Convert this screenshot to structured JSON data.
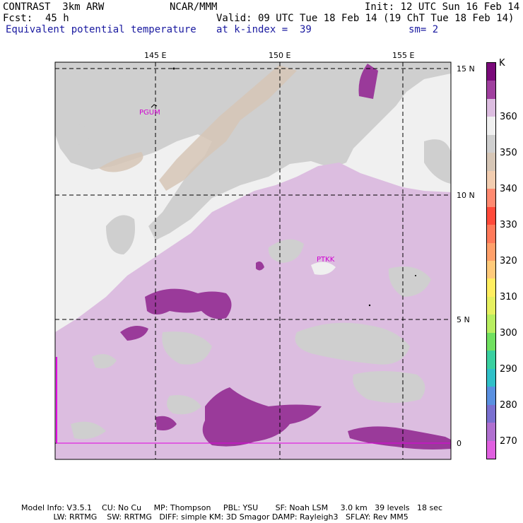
{
  "header": {
    "model": "CONTRAST  3km ARW",
    "producer": "NCAR/MMM",
    "init": "Init: 12 UTC Sun 16 Feb 14",
    "fcst_label": "Fcst:",
    "fcst_value": "45 h",
    "valid": "Valid: 09 UTC Tue 18 Feb 14 (19 ChT Tue 18 Feb 14)",
    "field": "Equivalent potential temperature",
    "level": "at k-index =  39",
    "smoothing": "sm= 2"
  },
  "map": {
    "lon_labels": [
      "145 E",
      "150 E",
      "155 E"
    ],
    "lat_labels": [
      "15 N",
      "10 N",
      "5 N",
      "0"
    ],
    "stations": [
      "PGUM",
      "PTKK"
    ],
    "fill_colors": {
      "background": "#f0f0f0",
      "grey": "#cfcfcf",
      "tan": "#d6c6b6",
      "light_purple": "#dcbde0",
      "dark_purple": "#9a3a9a"
    }
  },
  "colorbar": {
    "unit": "K",
    "labels": [
      "360",
      "350",
      "340",
      "330",
      "320",
      "310",
      "300",
      "290",
      "280",
      "270"
    ],
    "colors": [
      "#7a0a7a",
      "#a0409f",
      "#dcbde0",
      "#f0f0f0",
      "#cfcfcf",
      "#d6c6b6",
      "#f2cdb0",
      "#ff8a70",
      "#ff4a3a",
      "#ff7a5a",
      "#ffa06a",
      "#ffca7a",
      "#ffee60",
      "#e6f060",
      "#b8ee60",
      "#70e060",
      "#3ad0a0",
      "#30c0c8",
      "#5a90e0",
      "#7a70d0",
      "#b070d0",
      "#e060e0"
    ]
  },
  "footer": {
    "line1": "Model Info: V3.5.1    CU: No Cu     MP: Thompson     PBL: YSU       SF: Noah LSM     3.0 km   39 levels   18 sec",
    "line2": "             LW: RRTMG    SW: RRTMG   DIFF: simple KM: 3D Smagor DAMP: Rayleigh3   SFLAY: Rev MM5"
  }
}
